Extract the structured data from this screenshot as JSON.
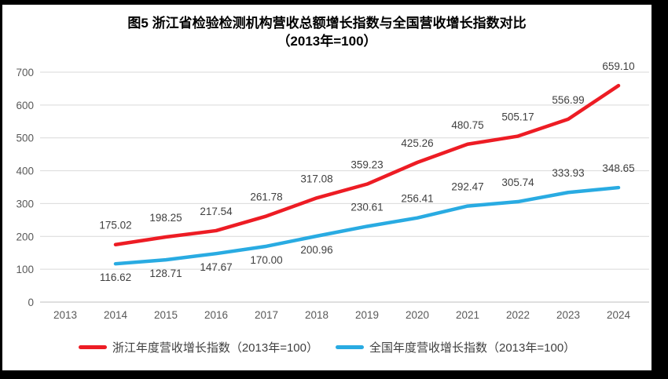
{
  "page": {
    "background": "#000000",
    "panel_background": "#ffffff"
  },
  "chart_data": {
    "type": "line",
    "title": "图5  浙江省检验检测机构营收总额增长指数与全国营收增长指数对比",
    "subtitle": "（2013年=100）",
    "categories": [
      "2013",
      "2014",
      "2015",
      "2016",
      "2017",
      "2018",
      "2019",
      "2020",
      "2021",
      "2022",
      "2023",
      "2024"
    ],
    "ylim": [
      0,
      700
    ],
    "yticks": [
      0,
      100,
      200,
      300,
      400,
      500,
      600,
      700
    ],
    "grid": true,
    "legend_position": "bottom",
    "axis_color": "#595959",
    "gridline_color": "#D9D9D9",
    "baseline_color": "#BFBFBF",
    "data_label_color": "#3F3F3F",
    "series": [
      {
        "name": "浙江年度营收增长指数（2013年=100）",
        "color": "#ED1C24",
        "start_index": 1,
        "values": [
          175.02,
          198.25,
          217.54,
          261.78,
          317.08,
          359.23,
          425.26,
          480.75,
          505.17,
          556.99,
          659.1
        ],
        "label_sides": [
          "above",
          "above",
          "above",
          "above",
          "above",
          "above",
          "above",
          "above",
          "above",
          "above",
          "above"
        ]
      },
      {
        "name": "全国年度营收增长指数（2013年=100）",
        "color": "#29ABE2",
        "start_index": 1,
        "values": [
          116.62,
          128.71,
          147.67,
          170.0,
          200.96,
          230.61,
          256.41,
          292.47,
          305.74,
          333.93,
          348.65
        ],
        "label_sides": [
          "below",
          "below",
          "below",
          "below",
          "below",
          "above",
          "above",
          "above",
          "above",
          "above",
          "above"
        ]
      }
    ]
  }
}
